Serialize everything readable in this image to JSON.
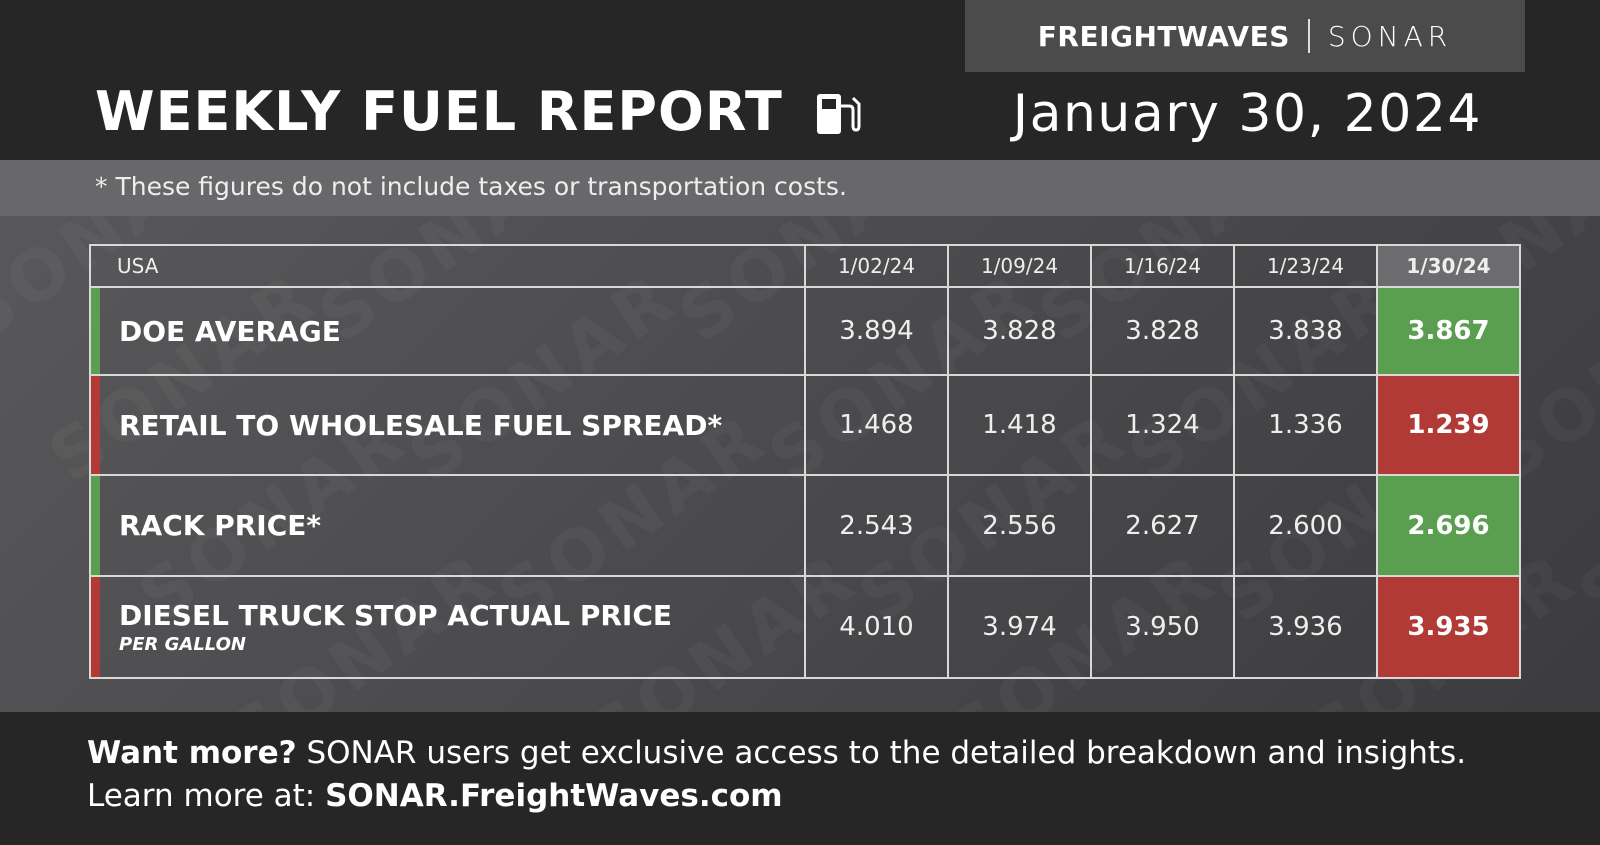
{
  "header": {
    "brand": "FREIGHTWAVES",
    "product": "SONAR",
    "title": "WEEKLY FUEL REPORT",
    "date": "January 30, 2024"
  },
  "note": "* These figures do not include taxes or transportation costs.",
  "watermark": "SONAR",
  "table": {
    "columns": [
      "USA",
      "1/02/24",
      "1/09/24",
      "1/16/24",
      "1/23/24",
      "1/30/24"
    ],
    "rows": [
      {
        "label": "DOE AVERAGE",
        "values": [
          "3.894",
          "3.828",
          "3.828",
          "3.838",
          "3.867"
        ],
        "color": "#5a9e4f"
      },
      {
        "label": "RETAIL TO WHOLESALE FUEL SPREAD*",
        "values": [
          "1.468",
          "1.418",
          "1.324",
          "1.336",
          "1.239"
        ],
        "color": "#b23a36"
      },
      {
        "label": "RACK PRICE*",
        "values": [
          "2.543",
          "2.556",
          "2.627",
          "2.600",
          "2.696"
        ],
        "color": "#5a9e4f"
      },
      {
        "label": "DIESEL TRUCK STOP ACTUAL PRICE",
        "sublabel": "PER GALLON",
        "values": [
          "4.010",
          "3.974",
          "3.950",
          "3.936",
          "3.935"
        ],
        "color": "#b23a36"
      }
    ]
  },
  "footer": {
    "line1_bold": "Want more?",
    "line1": " SONAR users get exclusive access to the detailed breakdown and insights.",
    "line2": "Learn more at: ",
    "line2_bold": "SONAR.FreightWaves.com"
  }
}
